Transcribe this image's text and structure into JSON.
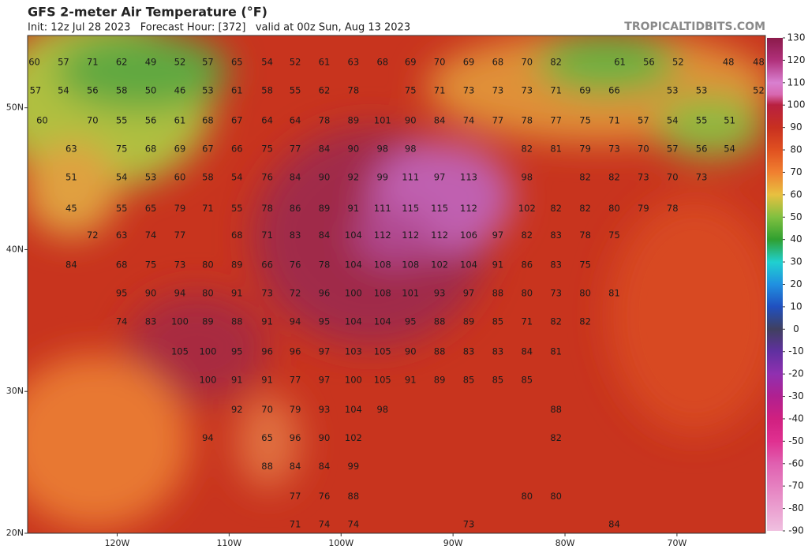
{
  "chart_data": {
    "type": "map",
    "title": "GFS 2-meter Air Temperature (°F)",
    "subtitle": "Init: 12z Jul 28 2023   Forecast Hour: [372]   valid at 00z Sun, Aug 13 2023",
    "source": "TROPICALTIDBITS.COM",
    "xlim": [
      -128,
      -62.1
    ],
    "ylim": [
      20,
      55.1
    ],
    "xticks": [
      {
        "value": -120,
        "label": "120W"
      },
      {
        "value": -110,
        "label": "110W"
      },
      {
        "value": -100,
        "label": "100W"
      },
      {
        "value": -90,
        "label": "90W"
      },
      {
        "value": -80,
        "label": "80W"
      },
      {
        "value": -70,
        "label": "70W"
      }
    ],
    "yticks": [
      {
        "value": 50,
        "label": "50N"
      },
      {
        "value": 40,
        "label": "40N"
      },
      {
        "value": 30,
        "label": "30N"
      },
      {
        "value": 20,
        "label": "20N"
      }
    ],
    "colorbar": {
      "lim": [
        -90,
        130
      ],
      "ticks": [
        130,
        120,
        110,
        100,
        90,
        80,
        70,
        60,
        50,
        40,
        30,
        20,
        10,
        0,
        -10,
        -20,
        -30,
        -40,
        -50,
        -60,
        -70,
        -80,
        -90
      ]
    },
    "stations": [
      {
        "lat": 53.2,
        "lon": [
          -127.4,
          -124.8,
          -122.2,
          -119.6,
          -117.0,
          -114.4,
          -111.9,
          -109.3,
          -106.6,
          -104.1,
          -101.5,
          -98.9,
          -96.3,
          -93.8,
          -91.2,
          -88.6,
          -86.0,
          -83.4,
          -80.8,
          -75.1,
          -72.5,
          -69.9,
          -65.4,
          -62.7
        ],
        "values": [
          60,
          57,
          71,
          62,
          49,
          52,
          57,
          65,
          54,
          52,
          61,
          63,
          68,
          69,
          70,
          69,
          68,
          70,
          82,
          61,
          56,
          52,
          48,
          48
        ]
      },
      {
        "lat": 51.2,
        "lon": [
          -127.3,
          -124.8,
          -122.2,
          -119.6,
          -117.0,
          -114.4,
          -111.9,
          -109.3,
          -106.6,
          -104.1,
          -101.5,
          -98.9,
          -93.8,
          -91.2,
          -88.6,
          -86.0,
          -83.4,
          -80.8,
          -78.2,
          -75.6,
          -70.4,
          -67.8,
          -62.7
        ],
        "values": [
          57,
          54,
          56,
          58,
          50,
          46,
          53,
          61,
          58,
          55,
          62,
          78,
          75,
          71,
          73,
          73,
          73,
          71,
          69,
          66,
          53,
          53,
          52
        ]
      },
      {
        "lat": 49.1,
        "lon": [
          -126.7,
          -122.2,
          -119.6,
          -117.0,
          -114.4,
          -111.9,
          -109.3,
          -106.6,
          -104.1,
          -101.5,
          -98.9,
          -96.3,
          -93.8,
          -91.2,
          -88.6,
          -86.0,
          -83.4,
          -80.8,
          -78.2,
          -75.6,
          -73.0,
          -70.4,
          -67.8,
          -65.3
        ],
        "values": [
          60,
          70,
          55,
          56,
          61,
          68,
          67,
          64,
          64,
          78,
          89,
          101,
          90,
          84,
          74,
          77,
          78,
          77,
          75,
          71,
          57,
          54,
          55,
          51
        ]
      },
      {
        "lat": 47.1,
        "lon": [
          -124.1,
          -119.6,
          -117.0,
          -114.4,
          -111.9,
          -109.3,
          -106.6,
          -104.1,
          -101.5,
          -98.9,
          -96.3,
          -93.8,
          -83.4,
          -80.8,
          -78.2,
          -75.6,
          -73.0,
          -70.4,
          -67.8,
          -65.3
        ],
        "values": [
          63,
          75,
          68,
          69,
          67,
          66,
          75,
          77,
          84,
          90,
          98,
          98,
          82,
          81,
          79,
          73,
          70,
          57,
          56,
          54
        ]
      },
      {
        "lat": 45.1,
        "lon": [
          -124.1,
          -119.6,
          -117.0,
          -114.4,
          -111.9,
          -109.3,
          -106.6,
          -104.1,
          -101.5,
          -98.9,
          -96.3,
          -93.8,
          -91.2,
          -88.6,
          -83.4,
          -78.2,
          -75.6,
          -73.0,
          -70.4,
          -67.8
        ],
        "values": [
          51,
          54,
          53,
          60,
          58,
          54,
          76,
          84,
          90,
          92,
          99,
          111,
          97,
          113,
          98,
          82,
          82,
          73,
          70,
          73
        ]
      },
      {
        "lat": 42.9,
        "lon": [
          -124.1,
          -119.6,
          -117.0,
          -114.4,
          -111.9,
          -109.3,
          -106.6,
          -104.1,
          -101.5,
          -98.9,
          -96.3,
          -93.8,
          -91.2,
          -88.6,
          -83.4,
          -80.8,
          -78.2,
          -75.6,
          -73.0,
          -70.4
        ],
        "values": [
          45,
          55,
          65,
          79,
          71,
          55,
          78,
          86,
          89,
          91,
          111,
          115,
          115,
          112,
          102,
          82,
          82,
          80,
          79,
          78
        ]
      },
      {
        "lat": 41.0,
        "lon": [
          -122.2,
          -119.6,
          -117.0,
          -114.4,
          -109.3,
          -106.6,
          -104.1,
          -101.5,
          -98.9,
          -96.3,
          -93.8,
          -91.2,
          -88.6,
          -86.0,
          -83.4,
          -80.8,
          -78.2,
          -75.6
        ],
        "values": [
          72,
          63,
          74,
          77,
          68,
          71,
          83,
          84,
          104,
          112,
          112,
          112,
          106,
          97,
          82,
          83,
          78,
          75
        ]
      },
      {
        "lat": 38.9,
        "lon": [
          -124.1,
          -119.6,
          -117.0,
          -114.4,
          -111.9,
          -109.3,
          -106.6,
          -104.1,
          -101.5,
          -98.9,
          -96.3,
          -93.8,
          -91.2,
          -88.6,
          -86.0,
          -83.4,
          -80.8,
          -78.2
        ],
        "values": [
          84,
          68,
          75,
          73,
          80,
          89,
          66,
          76,
          78,
          104,
          108,
          108,
          102,
          104,
          91,
          86,
          83,
          75
        ]
      },
      {
        "lat": 36.9,
        "lon": [
          -119.6,
          -117.0,
          -114.4,
          -111.9,
          -109.3,
          -106.6,
          -104.1,
          -101.5,
          -98.9,
          -96.3,
          -93.8,
          -91.2,
          -88.6,
          -86.0,
          -83.4,
          -80.8,
          -78.2,
          -75.6
        ],
        "values": [
          95,
          90,
          94,
          80,
          91,
          73,
          72,
          96,
          100,
          108,
          101,
          93,
          97,
          88,
          80,
          73,
          80,
          81
        ]
      },
      {
        "lat": 34.9,
        "lon": [
          -119.6,
          -117.0,
          -114.4,
          -111.9,
          -109.3,
          -106.6,
          -104.1,
          -101.5,
          -98.9,
          -96.3,
          -93.8,
          -91.2,
          -88.6,
          -86.0,
          -83.4,
          -80.8,
          -78.2
        ],
        "values": [
          74,
          83,
          100,
          89,
          88,
          91,
          94,
          95,
          104,
          104,
          95,
          88,
          89,
          85,
          71,
          82,
          82
        ]
      },
      {
        "lat": 32.8,
        "lon": [
          -114.4,
          -111.9,
          -109.3,
          -106.6,
          -104.1,
          -101.5,
          -98.9,
          -96.3,
          -93.8,
          -91.2,
          -88.6,
          -86.0,
          -83.4,
          -80.8
        ],
        "values": [
          105,
          100,
          95,
          96,
          96,
          97,
          103,
          105,
          90,
          88,
          83,
          83,
          84,
          81
        ]
      },
      {
        "lat": 30.8,
        "lon": [
          -111.9,
          -109.3,
          -106.6,
          -104.1,
          -101.5,
          -98.9,
          -96.3,
          -93.8,
          -91.2,
          -88.6,
          -86.0,
          -83.4
        ],
        "values": [
          100,
          91,
          91,
          77,
          97,
          100,
          105,
          91,
          89,
          85,
          85,
          85
        ]
      },
      {
        "lat": 28.7,
        "lon": [
          -109.3,
          -106.6,
          -104.1,
          -101.5,
          -98.9,
          -96.3,
          -80.8
        ],
        "values": [
          92,
          70,
          79,
          93,
          104,
          98,
          88
        ]
      },
      {
        "lat": 26.7,
        "lon": [
          -111.9,
          -106.6,
          -104.1,
          -101.5,
          -98.9,
          -80.8
        ],
        "values": [
          94,
          65,
          96,
          90,
          102,
          82
        ]
      },
      {
        "lat": 24.7,
        "lon": [
          -106.6,
          -104.1,
          -101.5,
          -98.9
        ],
        "values": [
          88,
          84,
          84,
          99
        ]
      },
      {
        "lat": 22.6,
        "lon": [
          -104.1,
          -101.5,
          -98.9,
          -83.4,
          -80.8
        ],
        "values": [
          77,
          76,
          88,
          80,
          80
        ]
      },
      {
        "lat": 20.6,
        "lon": [
          -104.1,
          -101.5,
          -98.9,
          -88.6,
          -75.6
        ],
        "values": [
          71,
          74,
          74,
          73,
          84
        ]
      }
    ]
  }
}
